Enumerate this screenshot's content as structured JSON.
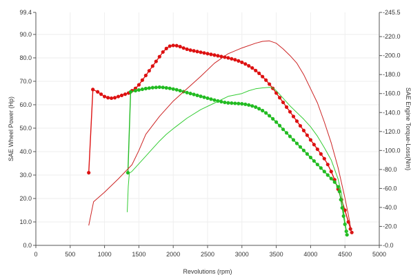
{
  "chart_data": {
    "type": "line",
    "title": "",
    "xlabel": "Revolutions (rpm)",
    "ylabel_left": "SAE Wheel Power (Hp)",
    "ylabel_right": "SAE Engine Torque-Loss(Nm)",
    "xlim": [
      0,
      5000
    ],
    "ylim_left": [
      0,
      99.4
    ],
    "ylim_right": [
      0,
      245.5
    ],
    "x_ticks": [
      0,
      500,
      1000,
      1500,
      2000,
      2500,
      3000,
      3500,
      4000,
      4500,
      5000
    ],
    "x_tick_labels": [
      "0",
      "500",
      "1000",
      "1500",
      "2000",
      "2500",
      "3000",
      "3500",
      "4000",
      "4500",
      "5000"
    ],
    "y_left_ticks": [
      0,
      10,
      20,
      30,
      40,
      50,
      60,
      70,
      80,
      90,
      99.4
    ],
    "y_left_tick_labels": [
      "0.0",
      "10.0",
      "20.0",
      "30.0",
      "40.0",
      "50.0",
      "60.0",
      "70.0",
      "80.0",
      "90.0",
      "99.4"
    ],
    "y_right_ticks": [
      0,
      20,
      40,
      60,
      80,
      100,
      120,
      140,
      160,
      180,
      200,
      220,
      245.5
    ],
    "y_right_tick_labels": [
      "0.0",
      "20.0",
      "40.0",
      "60.0",
      "80.0",
      "100.0",
      "120.0",
      "140.0",
      "160.0",
      "180.0",
      "200.0",
      "220.0",
      "245.5"
    ],
    "grid": true,
    "series": [
      {
        "role": "power",
        "axis": "left",
        "color": "#dd1111",
        "markers": true,
        "points": [
          [
            770,
            31
          ],
          [
            830,
            66.5
          ],
          [
            900,
            65.5
          ],
          [
            950,
            64.5
          ],
          [
            1000,
            63.5
          ],
          [
            1050,
            63
          ],
          [
            1100,
            62.8
          ],
          [
            1150,
            63
          ],
          [
            1200,
            63.5
          ],
          [
            1250,
            64
          ],
          [
            1300,
            64.5
          ],
          [
            1350,
            65
          ],
          [
            1400,
            66
          ],
          [
            1450,
            67
          ],
          [
            1500,
            68.5
          ],
          [
            1550,
            70.5
          ],
          [
            1600,
            72.5
          ],
          [
            1650,
            74.5
          ],
          [
            1700,
            76.5
          ],
          [
            1750,
            78.5
          ],
          [
            1800,
            80.5
          ],
          [
            1850,
            82.5
          ],
          [
            1900,
            84
          ],
          [
            1950,
            85
          ],
          [
            2000,
            85.3
          ],
          [
            2050,
            85.2
          ],
          [
            2100,
            84.8
          ],
          [
            2150,
            84.2
          ],
          [
            2200,
            83.7
          ],
          [
            2250,
            83.3
          ],
          [
            2300,
            83
          ],
          [
            2350,
            82.7
          ],
          [
            2400,
            82.4
          ],
          [
            2450,
            82.1
          ],
          [
            2500,
            81.8
          ],
          [
            2550,
            81.5
          ],
          [
            2600,
            81.2
          ],
          [
            2650,
            80.9
          ],
          [
            2700,
            80.6
          ],
          [
            2750,
            80.3
          ],
          [
            2800,
            80
          ],
          [
            2850,
            79.6
          ],
          [
            2900,
            79.2
          ],
          [
            2950,
            78.7
          ],
          [
            3000,
            78.1
          ],
          [
            3050,
            77.4
          ],
          [
            3100,
            76.6
          ],
          [
            3150,
            75.7
          ],
          [
            3200,
            74.6
          ],
          [
            3250,
            73.4
          ],
          [
            3300,
            72
          ],
          [
            3350,
            70.5
          ],
          [
            3400,
            68.8
          ],
          [
            3450,
            67
          ],
          [
            3500,
            65
          ],
          [
            3550,
            63
          ],
          [
            3600,
            61
          ],
          [
            3650,
            59
          ],
          [
            3700,
            57
          ],
          [
            3750,
            55
          ],
          [
            3800,
            53
          ],
          [
            3850,
            51
          ],
          [
            3900,
            49
          ],
          [
            3950,
            47
          ],
          [
            4000,
            45
          ],
          [
            4050,
            43
          ],
          [
            4100,
            41
          ],
          [
            4150,
            39
          ],
          [
            4200,
            37
          ],
          [
            4250,
            34.5
          ],
          [
            4300,
            31.5
          ],
          [
            4350,
            28
          ],
          [
            4400,
            24
          ],
          [
            4450,
            19.5
          ],
          [
            4500,
            15
          ],
          [
            4550,
            10
          ],
          [
            4580,
            7
          ],
          [
            4600,
            5.5
          ]
        ]
      },
      {
        "role": "power",
        "axis": "left",
        "color": "#22bb22",
        "markers": true,
        "points": [
          [
            1340,
            31
          ],
          [
            1380,
            65.5
          ],
          [
            1450,
            66
          ],
          [
            1500,
            66.3
          ],
          [
            1550,
            66.6
          ],
          [
            1600,
            66.9
          ],
          [
            1650,
            67.1
          ],
          [
            1700,
            67.3
          ],
          [
            1750,
            67.4
          ],
          [
            1800,
            67.5
          ],
          [
            1850,
            67.4
          ],
          [
            1900,
            67.2
          ],
          [
            1950,
            67
          ],
          [
            2000,
            66.7
          ],
          [
            2050,
            66.4
          ],
          [
            2100,
            66
          ],
          [
            2150,
            65.6
          ],
          [
            2200,
            65.2
          ],
          [
            2250,
            64.8
          ],
          [
            2300,
            64.4
          ],
          [
            2350,
            64
          ],
          [
            2400,
            63.6
          ],
          [
            2450,
            63.2
          ],
          [
            2500,
            62.8
          ],
          [
            2550,
            62.4
          ],
          [
            2600,
            62
          ],
          [
            2650,
            61.6
          ],
          [
            2700,
            61.3
          ],
          [
            2750,
            61
          ],
          [
            2800,
            60.8
          ],
          [
            2850,
            60.7
          ],
          [
            2900,
            60.6
          ],
          [
            2950,
            60.5
          ],
          [
            3000,
            60.4
          ],
          [
            3050,
            60.2
          ],
          [
            3100,
            59.9
          ],
          [
            3150,
            59.5
          ],
          [
            3200,
            59
          ],
          [
            3250,
            58.3
          ],
          [
            3300,
            57.5
          ],
          [
            3350,
            56.5
          ],
          [
            3400,
            55.3
          ],
          [
            3450,
            54
          ],
          [
            3500,
            52.6
          ],
          [
            3550,
            51.1
          ],
          [
            3600,
            49.5
          ],
          [
            3650,
            48
          ],
          [
            3700,
            46.5
          ],
          [
            3750,
            45
          ],
          [
            3800,
            43.5
          ],
          [
            3850,
            42
          ],
          [
            3900,
            40.5
          ],
          [
            3950,
            39
          ],
          [
            4000,
            37.5
          ],
          [
            4050,
            36
          ],
          [
            4100,
            34.5
          ],
          [
            4150,
            33
          ],
          [
            4200,
            31.5
          ],
          [
            4250,
            30
          ],
          [
            4300,
            28.5
          ],
          [
            4350,
            27
          ],
          [
            4400,
            25
          ],
          [
            4420,
            23
          ],
          [
            4440,
            19.5
          ],
          [
            4460,
            16
          ],
          [
            4480,
            12.5
          ],
          [
            4500,
            9
          ],
          [
            4520,
            6
          ],
          [
            4530,
            4.5
          ]
        ]
      },
      {
        "role": "torque-loss",
        "axis": "right",
        "color": "#cc2222",
        "markers": false,
        "points": [
          [
            770,
            21
          ],
          [
            840,
            46
          ],
          [
            1000,
            56
          ],
          [
            1200,
            70
          ],
          [
            1400,
            85
          ],
          [
            1500,
            100
          ],
          [
            1600,
            117
          ],
          [
            1800,
            136
          ],
          [
            2000,
            152
          ],
          [
            2200,
            165
          ],
          [
            2400,
            178
          ],
          [
            2600,
            192
          ],
          [
            2800,
            202
          ],
          [
            3000,
            208
          ],
          [
            3200,
            213
          ],
          [
            3300,
            215
          ],
          [
            3400,
            215.5
          ],
          [
            3500,
            213
          ],
          [
            3600,
            207
          ],
          [
            3700,
            200
          ],
          [
            3800,
            192
          ],
          [
            3900,
            180
          ],
          [
            4000,
            165
          ],
          [
            4100,
            150
          ],
          [
            4200,
            130
          ],
          [
            4300,
            108
          ],
          [
            4400,
            82
          ],
          [
            4500,
            50
          ],
          [
            4550,
            32
          ],
          [
            4600,
            12
          ]
        ]
      },
      {
        "role": "torque-loss",
        "axis": "right",
        "color": "#33cc33",
        "markers": false,
        "points": [
          [
            1330,
            35
          ],
          [
            1345,
            62
          ],
          [
            1360,
            76
          ],
          [
            1400,
            78
          ],
          [
            1500,
            86
          ],
          [
            1600,
            94
          ],
          [
            1700,
            102
          ],
          [
            1800,
            110
          ],
          [
            1900,
            117
          ],
          [
            2000,
            123
          ],
          [
            2200,
            134
          ],
          [
            2400,
            143
          ],
          [
            2600,
            150
          ],
          [
            2800,
            157
          ],
          [
            3000,
            160
          ],
          [
            3100,
            163
          ],
          [
            3200,
            165
          ],
          [
            3300,
            166
          ],
          [
            3400,
            166.5
          ],
          [
            3450,
            166
          ],
          [
            3500,
            163
          ],
          [
            3600,
            155
          ],
          [
            3700,
            147
          ],
          [
            3800,
            140
          ],
          [
            3900,
            133
          ],
          [
            4000,
            125
          ],
          [
            4100,
            115
          ],
          [
            4200,
            103
          ],
          [
            4300,
            90
          ],
          [
            4400,
            70
          ],
          [
            4450,
            55
          ],
          [
            4500,
            25
          ],
          [
            4530,
            12
          ]
        ]
      }
    ]
  }
}
